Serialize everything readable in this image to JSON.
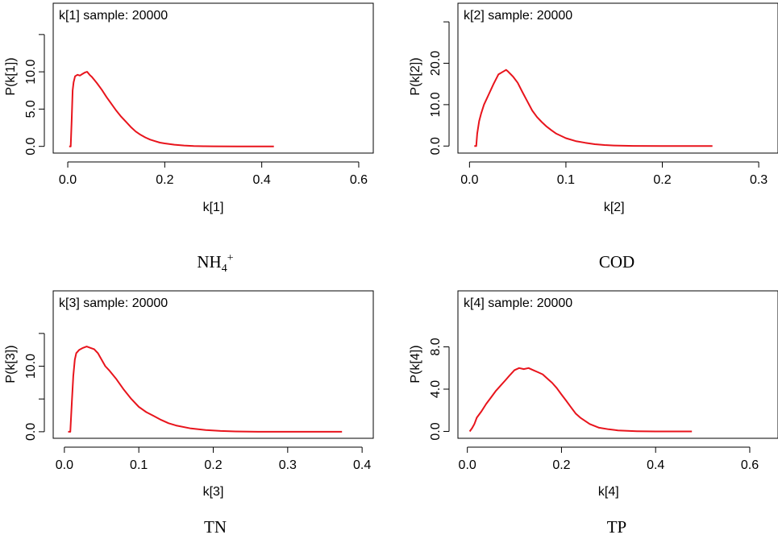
{
  "chart_data": [
    {
      "type": "line",
      "sample_label": "k[1] sample: 20000",
      "title": "NH4+",
      "title_main": "NH",
      "title_sub": "4",
      "title_sup": "+",
      "xlabel": "k[1]",
      "ylabel": "P(k[1])",
      "xlim": [
        -0.03,
        0.63
      ],
      "ylim": [
        -0.9,
        19.2
      ],
      "xticks": [
        0.0,
        0.2,
        0.4,
        0.6
      ],
      "xtick_labels": [
        "0.0",
        "0.2",
        "0.4",
        "0.6"
      ],
      "yticks": [
        0.0,
        5.0,
        10.0,
        15.0
      ],
      "ytick_labels": [
        "0.0",
        "5.0",
        "10.0",
        ""
      ],
      "color": "#e8141c",
      "series": [
        {
          "x": [
            0.003,
            0.006,
            0.008,
            0.01,
            0.012,
            0.015,
            0.02,
            0.025,
            0.03,
            0.035,
            0.04,
            0.045,
            0.05,
            0.06,
            0.07,
            0.08,
            0.09,
            0.1,
            0.11,
            0.12,
            0.13,
            0.14,
            0.15,
            0.16,
            0.17,
            0.18,
            0.19,
            0.2,
            0.22,
            0.24,
            0.26,
            0.28,
            0.3,
            0.35,
            0.4,
            0.425
          ],
          "y": [
            0.0,
            0.0,
            3.5,
            7.5,
            8.6,
            9.4,
            9.6,
            9.5,
            9.7,
            9.9,
            10.0,
            9.6,
            9.3,
            8.5,
            7.6,
            6.6,
            5.7,
            4.8,
            4.0,
            3.3,
            2.6,
            2.0,
            1.55,
            1.2,
            0.9,
            0.7,
            0.5,
            0.4,
            0.22,
            0.12,
            0.05,
            0.02,
            0.01,
            0.0,
            0.0,
            0.0
          ]
        }
      ]
    },
    {
      "type": "line",
      "sample_label": "k[2] sample: 20000",
      "title": "COD",
      "xlabel": "k[2]",
      "ylabel": "P(k[2])",
      "xlim": [
        -0.012,
        0.32
      ],
      "ylim": [
        -1.7,
        34.5
      ],
      "xticks": [
        0.0,
        0.1,
        0.2,
        0.3
      ],
      "xtick_labels": [
        "0.0",
        "0.1",
        "0.2",
        "0.3"
      ],
      "yticks": [
        0.0,
        10.0,
        20.0,
        30.0
      ],
      "ytick_labels": [
        "0.0",
        "10.0",
        "20.0",
        ""
      ],
      "color": "#e8141c",
      "series": [
        {
          "x": [
            0.005,
            0.007,
            0.008,
            0.01,
            0.012,
            0.015,
            0.018,
            0.02,
            0.025,
            0.03,
            0.035,
            0.038,
            0.04,
            0.045,
            0.05,
            0.055,
            0.06,
            0.065,
            0.07,
            0.075,
            0.08,
            0.085,
            0.09,
            0.1,
            0.11,
            0.12,
            0.13,
            0.14,
            0.15,
            0.17,
            0.2,
            0.23,
            0.252
          ],
          "y": [
            0.0,
            0.0,
            3.0,
            6.0,
            7.8,
            10.0,
            11.5,
            12.5,
            15.0,
            17.3,
            18.0,
            18.4,
            18.0,
            16.8,
            15.3,
            13.0,
            10.8,
            8.6,
            7.0,
            5.8,
            4.7,
            3.8,
            3.0,
            1.9,
            1.2,
            0.8,
            0.45,
            0.25,
            0.12,
            0.04,
            0.0,
            0.0,
            0.0
          ]
        }
      ]
    },
    {
      "type": "line",
      "sample_label": "k[3] sample: 20000",
      "title": "TN",
      "xlabel": "k[3]",
      "ylabel": "P(k[3])",
      "xlim": [
        -0.015,
        0.415
      ],
      "ylim": [
        -1.0,
        21.5
      ],
      "xticks": [
        0.0,
        0.1,
        0.2,
        0.3,
        0.4
      ],
      "xtick_labels": [
        "0.0",
        "0.1",
        "0.2",
        "0.3",
        "0.4"
      ],
      "yticks": [
        0.0,
        5.0,
        10.0,
        15.0
      ],
      "ytick_labels": [
        "0.0",
        "",
        "10.0",
        ""
      ],
      "color": "#e8141c",
      "series": [
        {
          "x": [
            0.005,
            0.008,
            0.01,
            0.012,
            0.014,
            0.016,
            0.02,
            0.025,
            0.03,
            0.035,
            0.04,
            0.045,
            0.05,
            0.055,
            0.06,
            0.07,
            0.08,
            0.09,
            0.1,
            0.11,
            0.12,
            0.13,
            0.14,
            0.15,
            0.17,
            0.19,
            0.21,
            0.23,
            0.26,
            0.3,
            0.35,
            0.373
          ],
          "y": [
            0.0,
            0.0,
            4.5,
            8.5,
            11.0,
            12.0,
            12.5,
            12.8,
            13.0,
            12.8,
            12.6,
            12.0,
            11.0,
            10.0,
            9.4,
            8.0,
            6.4,
            5.0,
            3.8,
            3.0,
            2.4,
            1.8,
            1.3,
            0.95,
            0.5,
            0.25,
            0.12,
            0.05,
            0.0,
            0.0,
            0.0,
            0.0
          ]
        }
      ]
    },
    {
      "type": "line",
      "sample_label": "k[4] sample: 20000",
      "title": "TP",
      "xlabel": "k[4]",
      "ylabel": "P(k[4])",
      "xlim": [
        -0.02,
        0.66
      ],
      "ylim": [
        -0.65,
        13.3
      ],
      "xticks": [
        0.0,
        0.2,
        0.4,
        0.6
      ],
      "xtick_labels": [
        "0.0",
        "0.2",
        "0.4",
        "0.6"
      ],
      "yticks": [
        0.0,
        4.0,
        8.0
      ],
      "ytick_labels": [
        "0.0",
        "4.0",
        "8.0"
      ],
      "color": "#e8141c",
      "series": [
        {
          "x": [
            0.005,
            0.01,
            0.015,
            0.02,
            0.03,
            0.04,
            0.05,
            0.06,
            0.07,
            0.08,
            0.09,
            0.1,
            0.11,
            0.12,
            0.13,
            0.14,
            0.15,
            0.16,
            0.17,
            0.18,
            0.19,
            0.2,
            0.21,
            0.22,
            0.23,
            0.24,
            0.26,
            0.28,
            0.3,
            0.32,
            0.34,
            0.36,
            0.4,
            0.45,
            0.477
          ],
          "y": [
            0.0,
            0.3,
            0.7,
            1.3,
            1.9,
            2.6,
            3.2,
            3.8,
            4.3,
            4.8,
            5.3,
            5.8,
            6.0,
            5.9,
            6.0,
            5.8,
            5.6,
            5.4,
            5.0,
            4.6,
            4.1,
            3.5,
            2.9,
            2.3,
            1.7,
            1.3,
            0.7,
            0.35,
            0.2,
            0.1,
            0.05,
            0.02,
            0.0,
            0.0,
            0.0
          ]
        }
      ]
    }
  ]
}
